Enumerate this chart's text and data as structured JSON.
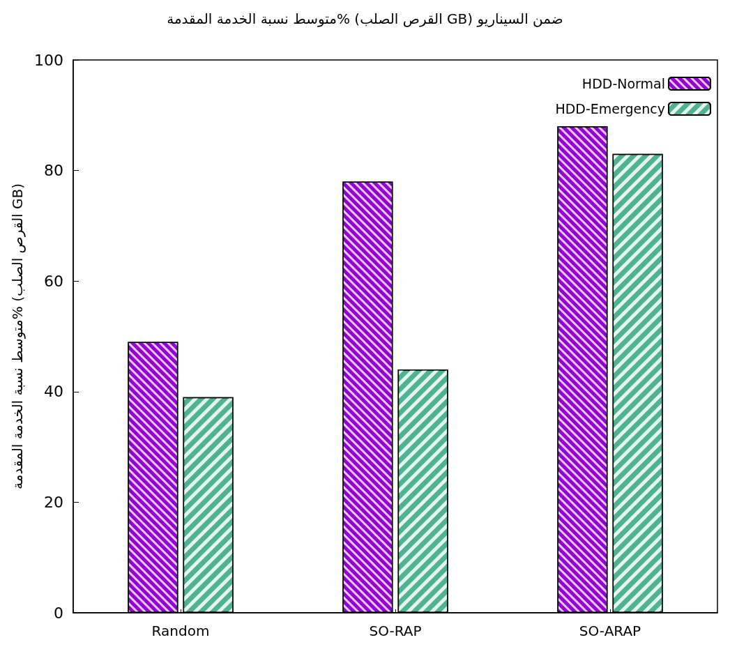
{
  "chart_data": {
    "type": "bar",
    "title": "متوسط نسبة الخدمة المقدمة% (القرص الصلب GB) ضمن السيناريو",
    "ylabel": "متوسط نسبة الخدمة المقدمة% (القرص الصلب GB)",
    "categories": [
      "Random",
      "SO-RAP",
      "SO-ARAP"
    ],
    "series": [
      {
        "name": "HDD-Normal",
        "color": "#9400d3",
        "values": [
          49,
          78,
          88
        ]
      },
      {
        "name": "HDD-Emergency",
        "color": "#4fb38f",
        "values": [
          39,
          44,
          83
        ]
      }
    ],
    "ylim": [
      0,
      100
    ],
    "yticks": [
      0,
      20,
      40,
      60,
      80,
      100
    ],
    "grid": false,
    "legend": "top right"
  }
}
